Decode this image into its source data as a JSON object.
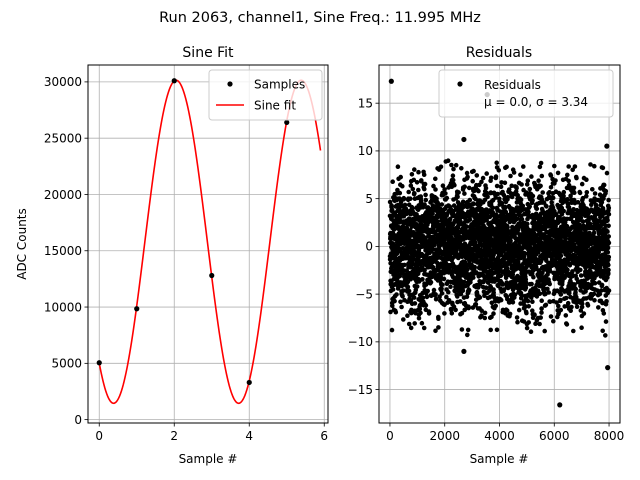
{
  "figure": {
    "suptitle": "Run 2063, channel1, Sine Freq.: 11.995 MHz"
  },
  "chart_data": [
    {
      "type": "line",
      "title": "Sine Fit",
      "xlabel": "Sample #",
      "ylabel": "ADC Counts",
      "xlim": [
        -0.3,
        6.1
      ],
      "ylim": [
        -300,
        31500
      ],
      "xticks": [
        0,
        2,
        4,
        6
      ],
      "yticks": [
        0,
        5000,
        10000,
        15000,
        20000,
        25000,
        30000
      ],
      "grid": true,
      "legend_position": "top-right",
      "series": [
        {
          "name": "Samples",
          "kind": "scatter",
          "color": "#000000",
          "x": [
            0,
            1,
            2,
            3,
            4,
            5
          ],
          "y": [
            5050,
            9850,
            30100,
            12800,
            3300,
            26400
          ]
        },
        {
          "name": "Sine fit",
          "kind": "line",
          "color": "#ff0000",
          "model": {
            "amplitude": 14350,
            "offset": 15800,
            "period": 3.335,
            "phase_sample": 2.05,
            "x_start": 0,
            "x_end": 5.9
          }
        }
      ]
    },
    {
      "type": "scatter",
      "title": "Residuals",
      "xlabel": "Sample #",
      "ylabel": "",
      "xlim": [
        -400,
        8400
      ],
      "ylim": [
        -18.5,
        19
      ],
      "xticks": [
        0,
        2000,
        4000,
        6000,
        8000
      ],
      "yticks": [
        -15,
        -10,
        -5,
        0,
        5,
        10,
        15
      ],
      "grid": true,
      "legend_position": "top-right",
      "series": [
        {
          "name": "Residuals",
          "stats_label": "μ = 0.0, σ = 3.34",
          "color": "#000000",
          "n_points": 8000,
          "mean": 0.0,
          "std": 3.34,
          "outliers": [
            {
              "x": 50,
              "y": 17.3
            },
            {
              "x": 3550,
              "y": 15.9
            },
            {
              "x": 6200,
              "y": -16.6
            },
            {
              "x": 7950,
              "y": -12.7
            },
            {
              "x": 2700,
              "y": -11.0
            },
            {
              "x": 2700,
              "y": 11.2
            },
            {
              "x": 7920,
              "y": 10.5
            }
          ]
        }
      ]
    }
  ]
}
